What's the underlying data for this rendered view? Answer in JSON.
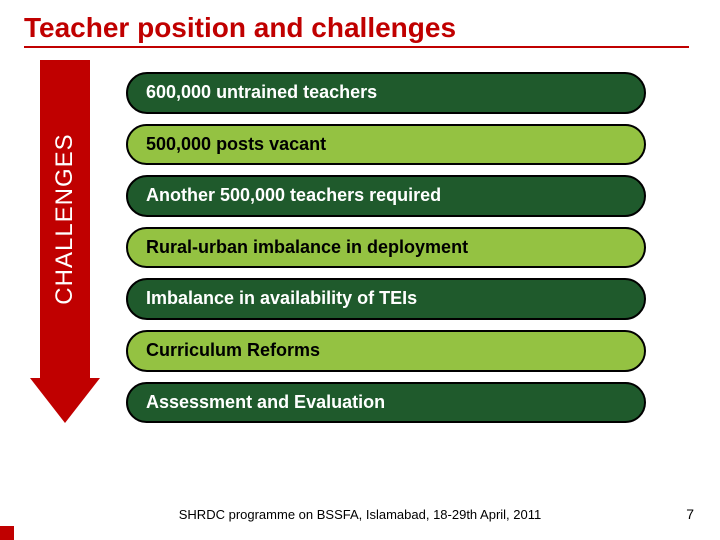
{
  "title": "Teacher position and challenges",
  "arrow_label": "CHALLENGES",
  "colors": {
    "title": "#c00000",
    "arrow": "#c00000",
    "arrow_text": "#ffffff",
    "pill_dark_bg": "#1f5a2c",
    "pill_dark_text": "#ffffff",
    "pill_light_bg": "#94c242",
    "pill_light_text": "#000000",
    "pill_border": "#000000",
    "background": "#ffffff"
  },
  "typography": {
    "title_fontsize": 28,
    "pill_fontsize": 18,
    "arrow_label_fontsize": 24,
    "footer_fontsize": 13
  },
  "pills": [
    {
      "text": "600,000 untrained teachers",
      "style": "dark"
    },
    {
      "text": "500,000 posts vacant",
      "style": "light"
    },
    {
      "text": "Another 500,000 teachers required",
      "style": "dark"
    },
    {
      "text": "Rural-urban imbalance in deployment",
      "style": "light"
    },
    {
      "text": "Imbalance in availability of TEIs",
      "style": "dark"
    },
    {
      "text": "Curriculum Reforms",
      "style": "light"
    },
    {
      "text": "Assessment and Evaluation",
      "style": "dark"
    }
  ],
  "footer": "SHRDC programme on BSSFA, Islamabad, 18-29th April, 2011",
  "page_number": "7"
}
